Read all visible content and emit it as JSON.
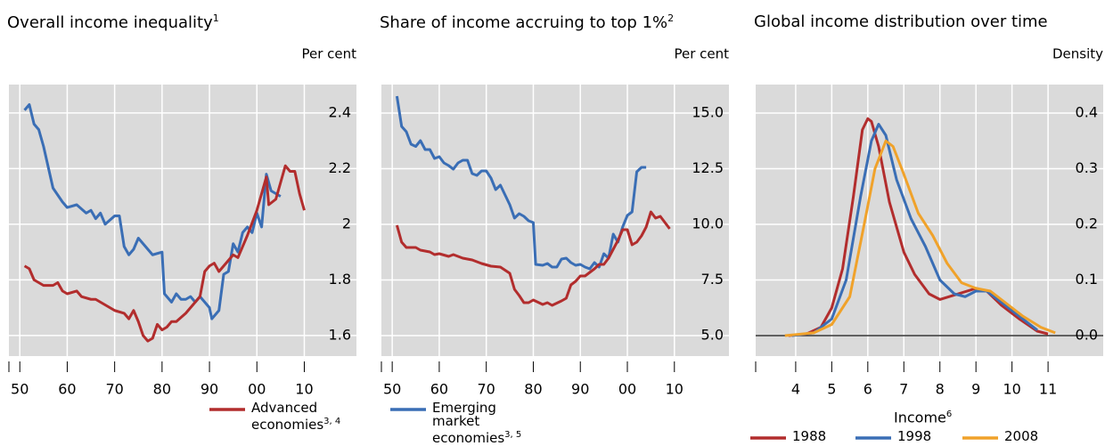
{
  "chart_data": [
    {
      "type": "line",
      "title": "Overall income inequality",
      "title_footnote": "1",
      "y_label": "Per cent",
      "xlim": [
        1947.7,
        2021
      ],
      "ylim": [
        1.526,
        2.502
      ],
      "grid": true,
      "xticks": [
        {
          "value": 1950,
          "label": "50"
        },
        {
          "value": 1960,
          "label": "60"
        },
        {
          "value": 1970,
          "label": "70"
        },
        {
          "value": 1980,
          "label": "80"
        },
        {
          "value": 1990,
          "label": "90"
        },
        {
          "value": 2000,
          "label": "00"
        },
        {
          "value": 2010,
          "label": "10"
        }
      ],
      "yticks": [
        1.6,
        1.8,
        2.0,
        2.2,
        2.4
      ],
      "series": [
        {
          "color": "#3a6eb5",
          "x": [
            1951,
            1952,
            1953,
            1954,
            1955,
            1957,
            1959,
            1960,
            1962,
            1964,
            1965,
            1966,
            1967,
            1968,
            1970,
            1971,
            1972,
            1973,
            1974,
            1975,
            1976,
            1977,
            1978,
            1980,
            1980.5,
            1982,
            1983,
            1984,
            1985,
            1986,
            1987,
            1988,
            1989,
            1990,
            1990.5,
            1991,
            1992,
            1993,
            1994,
            1995,
            1996,
            1997,
            1998,
            1999,
            2000,
            2001,
            2002,
            2003,
            2004,
            2005
          ],
          "values": [
            2.41,
            2.43,
            2.36,
            2.34,
            2.28,
            2.13,
            2.08,
            2.06,
            2.07,
            2.04,
            2.05,
            2.02,
            2.04,
            2.0,
            2.03,
            2.03,
            1.92,
            1.89,
            1.91,
            1.95,
            1.93,
            1.91,
            1.89,
            1.9,
            1.75,
            1.72,
            1.75,
            1.73,
            1.73,
            1.74,
            1.72,
            1.74,
            1.72,
            1.7,
            1.66,
            1.67,
            1.69,
            1.82,
            1.83,
            1.93,
            1.9,
            1.97,
            1.99,
            1.97,
            2.04,
            1.99,
            2.18,
            2.12,
            2.11,
            2.1
          ]
        },
        {
          "color": "#b22d2d",
          "name": "Advanced economies",
          "footnote": "3, 4",
          "x": [
            1951,
            1952,
            1953,
            1954,
            1955,
            1957,
            1958,
            1959,
            1960,
            1962,
            1963,
            1965,
            1966,
            1968,
            1970,
            1972,
            1973,
            1974,
            1975,
            1976,
            1977,
            1978,
            1979,
            1980,
            1981,
            1982,
            1983,
            1985,
            1986,
            1988,
            1989,
            1990,
            1991,
            1992,
            1993,
            1994,
            1995,
            1996,
            1998,
            2000,
            2002,
            2002.5,
            2004,
            2006,
            2007,
            2008,
            2009,
            2010
          ],
          "values": [
            1.85,
            1.84,
            1.8,
            1.79,
            1.78,
            1.78,
            1.79,
            1.76,
            1.75,
            1.76,
            1.74,
            1.73,
            1.73,
            1.71,
            1.69,
            1.68,
            1.66,
            1.69,
            1.65,
            1.6,
            1.58,
            1.59,
            1.64,
            1.62,
            1.63,
            1.65,
            1.65,
            1.68,
            1.7,
            1.74,
            1.83,
            1.85,
            1.86,
            1.83,
            1.85,
            1.87,
            1.89,
            1.88,
            1.96,
            2.05,
            2.17,
            2.07,
            2.09,
            2.21,
            2.19,
            2.19,
            2.11,
            2.05
          ]
        }
      ]
    },
    {
      "type": "line",
      "title": "Share of income accruing to top 1%",
      "title_footnote": "2",
      "y_label": "Per cent",
      "xlim": [
        1947.7,
        2021.6
      ],
      "ylim": [
        4.08,
        16.28
      ],
      "grid": true,
      "xticks": [
        {
          "value": 1950,
          "label": "50"
        },
        {
          "value": 1960,
          "label": "60"
        },
        {
          "value": 1970,
          "label": "70"
        },
        {
          "value": 1980,
          "label": "80"
        },
        {
          "value": 1990,
          "label": "90"
        },
        {
          "value": 2000,
          "label": "00"
        },
        {
          "value": 2010,
          "label": "10"
        }
      ],
      "yticks": [
        {
          "value": 5,
          "label": "5.0"
        },
        7.5,
        {
          "value": 10,
          "label": "10.0"
        },
        12.5,
        {
          "value": 15,
          "label": "15.0"
        }
      ],
      "series": [
        {
          "color": "#3a6eb5",
          "name": "Emerging market economies",
          "footnote": "3, 5",
          "x": [
            1951,
            1952,
            1953,
            1954,
            1955,
            1956,
            1957,
            1958,
            1959,
            1960,
            1961,
            1962,
            1963,
            1964,
            1965,
            1966,
            1967,
            1968,
            1969,
            1970,
            1971,
            1972,
            1973,
            1975,
            1976,
            1977,
            1978,
            1979,
            1980,
            1980.5,
            1982,
            1983,
            1984,
            1985,
            1986,
            1987,
            1988,
            1989,
            1990,
            1991,
            1992,
            1993,
            1994,
            1995,
            1996,
            1997,
            1998,
            1999,
            2000,
            2001,
            2002,
            2003,
            2004
          ],
          "values": [
            15.76,
            14.4,
            14.16,
            13.6,
            13.5,
            13.76,
            13.36,
            13.36,
            12.96,
            13.04,
            12.76,
            12.64,
            12.48,
            12.76,
            12.88,
            12.88,
            12.28,
            12.2,
            12.4,
            12.4,
            12.08,
            11.56,
            11.76,
            10.88,
            10.28,
            10.48,
            10.36,
            10.16,
            10.08,
            8.2,
            8.16,
            8.24,
            8.08,
            8.08,
            8.44,
            8.48,
            8.28,
            8.16,
            8.2,
            8.08,
            8.0,
            8.28,
            8.08,
            8.68,
            8.48,
            9.56,
            9.2,
            9.88,
            10.4,
            10.56,
            12.36,
            12.56,
            12.56
          ]
        },
        {
          "color": "#b22d2d",
          "x": [
            1951,
            1952,
            1953,
            1955,
            1956,
            1958,
            1959,
            1960,
            1962,
            1963,
            1965,
            1967,
            1969,
            1971,
            1973,
            1975,
            1976,
            1977,
            1978,
            1979,
            1980,
            1982,
            1983,
            1984,
            1986,
            1987,
            1988,
            1989,
            1990,
            1991,
            1993,
            1994,
            1995,
            1996,
            1997,
            1998,
            1999,
            2000,
            2001,
            2002,
            2003,
            2004,
            2005,
            2006,
            2007,
            2008,
            2009
          ],
          "values": [
            9.96,
            9.2,
            8.96,
            8.96,
            8.84,
            8.76,
            8.64,
            8.68,
            8.56,
            8.64,
            8.48,
            8.4,
            8.24,
            8.12,
            8.08,
            7.8,
            7.08,
            6.8,
            6.48,
            6.48,
            6.6,
            6.4,
            6.48,
            6.36,
            6.56,
            6.68,
            7.28,
            7.44,
            7.68,
            7.68,
            8.0,
            8.2,
            8.2,
            8.48,
            8.88,
            9.28,
            9.76,
            9.76,
            9.08,
            9.2,
            9.48,
            9.88,
            10.56,
            10.28,
            10.36,
            10.08,
            9.8
          ]
        }
      ]
    },
    {
      "type": "line",
      "title": "Global income distribution over time",
      "y_label": "Density",
      "x_label": "Income",
      "x_label_footnote": "6",
      "xlim": [
        2.89,
        12.53
      ],
      "ylim": [
        -0.0368,
        0.4512
      ],
      "grid": true,
      "zero_line": true,
      "xticks": [
        4,
        5,
        6,
        7,
        8,
        9,
        10,
        11
      ],
      "yticks": [
        {
          "value": 0,
          "label": "0.0"
        },
        0.1,
        0.2,
        0.3,
        0.4
      ],
      "series": [
        {
          "name": "1988",
          "color": "#b22d2d",
          "x": [
            3.8,
            4.3,
            4.7,
            5.0,
            5.3,
            5.6,
            5.85,
            6.0,
            6.1,
            6.3,
            6.6,
            7.0,
            7.3,
            7.7,
            8.0,
            8.5,
            9.0,
            9.3,
            9.7,
            10.2,
            10.7,
            11.0
          ],
          "values": [
            0,
            0.003,
            0.015,
            0.05,
            0.12,
            0.25,
            0.37,
            0.39,
            0.385,
            0.34,
            0.24,
            0.15,
            0.11,
            0.075,
            0.065,
            0.075,
            0.085,
            0.08,
            0.055,
            0.03,
            0.008,
            0.003
          ]
        },
        {
          "name": "1998",
          "color": "#3a6eb5",
          "x": [
            3.9,
            4.5,
            5.0,
            5.4,
            5.8,
            6.1,
            6.3,
            6.5,
            6.8,
            7.2,
            7.6,
            8.0,
            8.4,
            8.7,
            9.0,
            9.3,
            9.7,
            10.2,
            10.7
          ],
          "values": [
            0,
            0.005,
            0.03,
            0.1,
            0.25,
            0.35,
            0.38,
            0.36,
            0.28,
            0.21,
            0.16,
            0.1,
            0.075,
            0.07,
            0.08,
            0.08,
            0.06,
            0.035,
            0.01
          ]
        },
        {
          "name": "2008",
          "color": "#f0a22a",
          "x": [
            3.7,
            4.5,
            5.0,
            5.5,
            5.9,
            6.2,
            6.5,
            6.7,
            7.0,
            7.4,
            7.8,
            8.2,
            8.6,
            9.0,
            9.4,
            9.8,
            10.3,
            10.8,
            11.2
          ],
          "values": [
            0,
            0.005,
            0.02,
            0.07,
            0.2,
            0.3,
            0.35,
            0.34,
            0.29,
            0.22,
            0.18,
            0.13,
            0.095,
            0.085,
            0.08,
            0.06,
            0.035,
            0.015,
            0.005
          ]
        }
      ]
    }
  ]
}
